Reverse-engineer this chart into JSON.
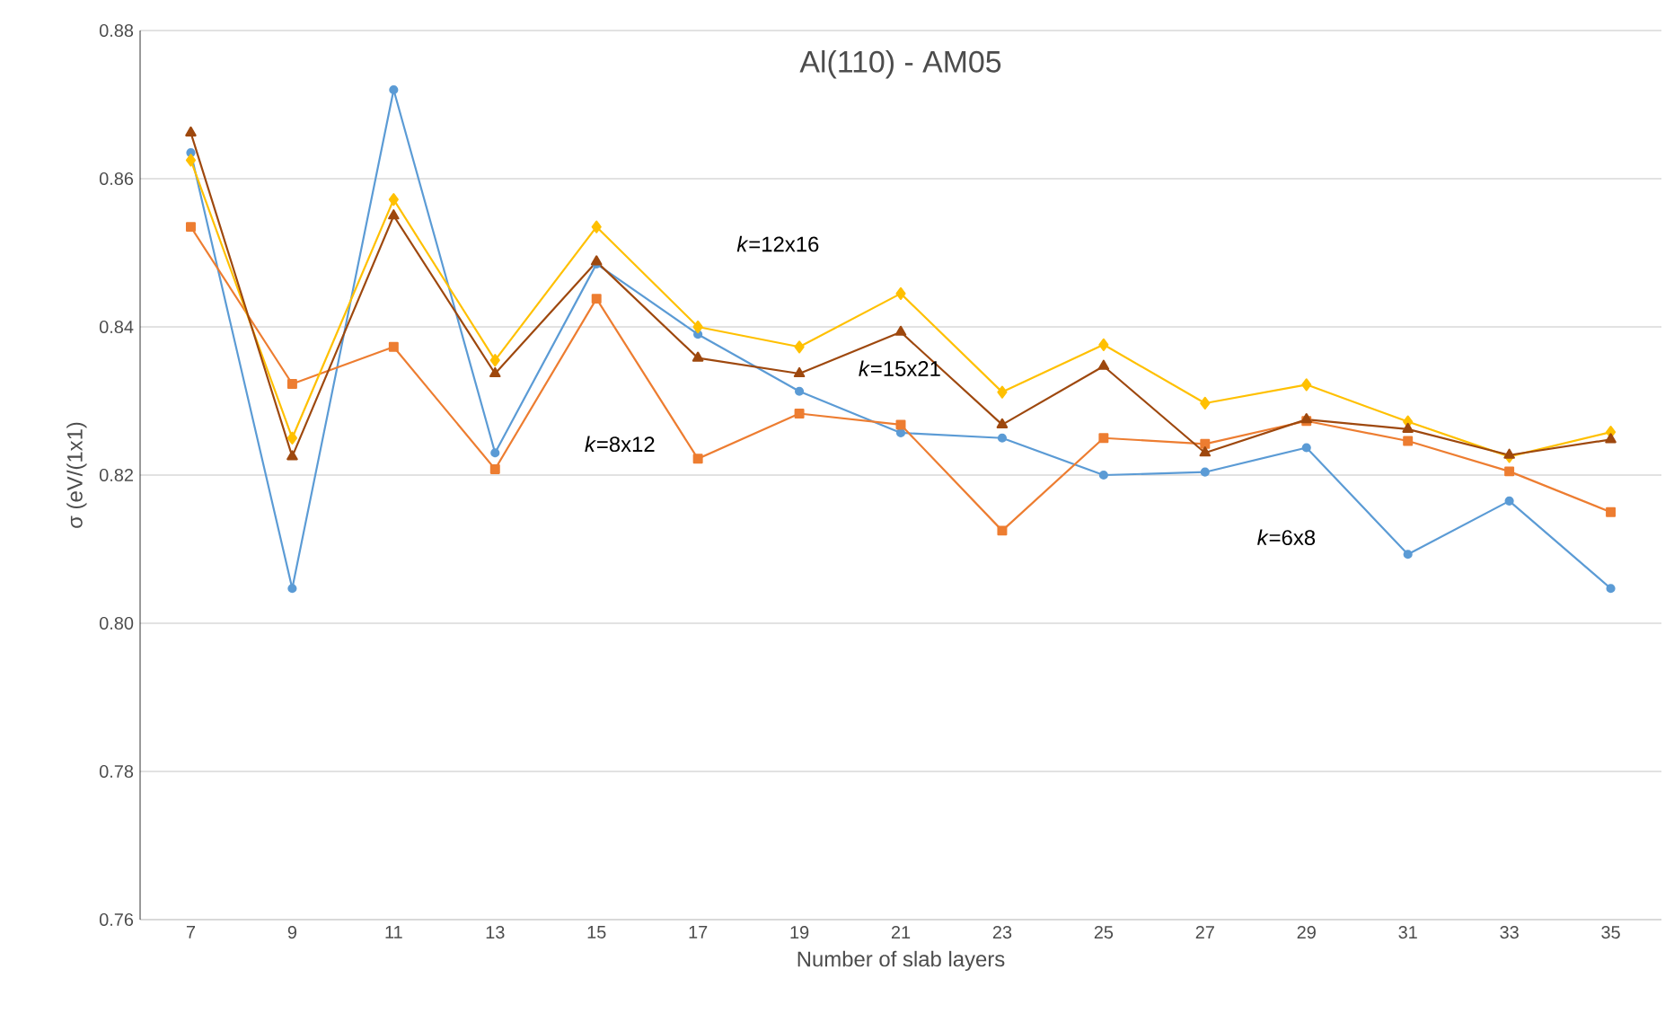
{
  "chart_data": {
    "type": "line",
    "title": "Al(110) - AM05",
    "xlabel": "Number  of slab layers",
    "ylabel": "σ (eV/(1x1)",
    "categories": [
      "7",
      "9",
      "11",
      "13",
      "15",
      "17",
      "19",
      "21",
      "23",
      "25",
      "27",
      "29",
      "31",
      "33",
      "35"
    ],
    "series": [
      {
        "color": "#5b9bd5",
        "marker": "circle",
        "values": [
          0.8635,
          0.8047,
          0.872,
          0.823,
          0.8485,
          0.839,
          0.8313,
          0.8257,
          0.825,
          0.82,
          0.8204,
          0.8237,
          0.8093,
          0.8165,
          0.8047
        ]
      },
      {
        "color": "#ed7d31",
        "marker": "square",
        "values": [
          0.8535,
          0.8323,
          0.8373,
          0.8208,
          0.8438,
          0.8222,
          0.8283,
          0.8268,
          0.8125,
          0.825,
          0.8242,
          0.8273,
          0.8246,
          0.8205,
          0.815
        ]
      },
      {
        "color": "#ffc000",
        "marker": "diamond",
        "values": [
          0.8625,
          0.825,
          0.8572,
          0.8355,
          0.8535,
          0.84,
          0.8373,
          0.8445,
          0.8312,
          0.8376,
          0.8297,
          0.8322,
          0.8272,
          0.8225,
          0.8258
        ]
      },
      {
        "color": "#9e480e",
        "marker": "triangle",
        "values": [
          0.8662,
          0.8225,
          0.855,
          0.8337,
          0.8488,
          0.8358,
          0.8337,
          0.8393,
          0.8268,
          0.8347,
          0.823,
          0.8275,
          0.8262,
          0.8227,
          0.8248
        ]
      }
    ],
    "annotations": [
      "*k*=12x16",
      "*k*=15x21",
      "*k*=8x12",
      "*k*=6x8"
    ],
    "ylim": [
      0.76,
      0.88
    ],
    "yticks": [
      {
        "value": 0.76,
        "label": "0.76"
      },
      {
        "value": 0.78,
        "label": "0.78"
      },
      {
        "value": 0.8,
        "label": "0.80"
      },
      {
        "value": 0.82,
        "label": "0.82"
      },
      {
        "value": 0.84,
        "label": "0.84"
      },
      {
        "value": 0.86,
        "label": "0.86"
      },
      {
        "value": 0.88,
        "label": "0.88"
      }
    ],
    "grid": "y",
    "line_style": "solid"
  }
}
